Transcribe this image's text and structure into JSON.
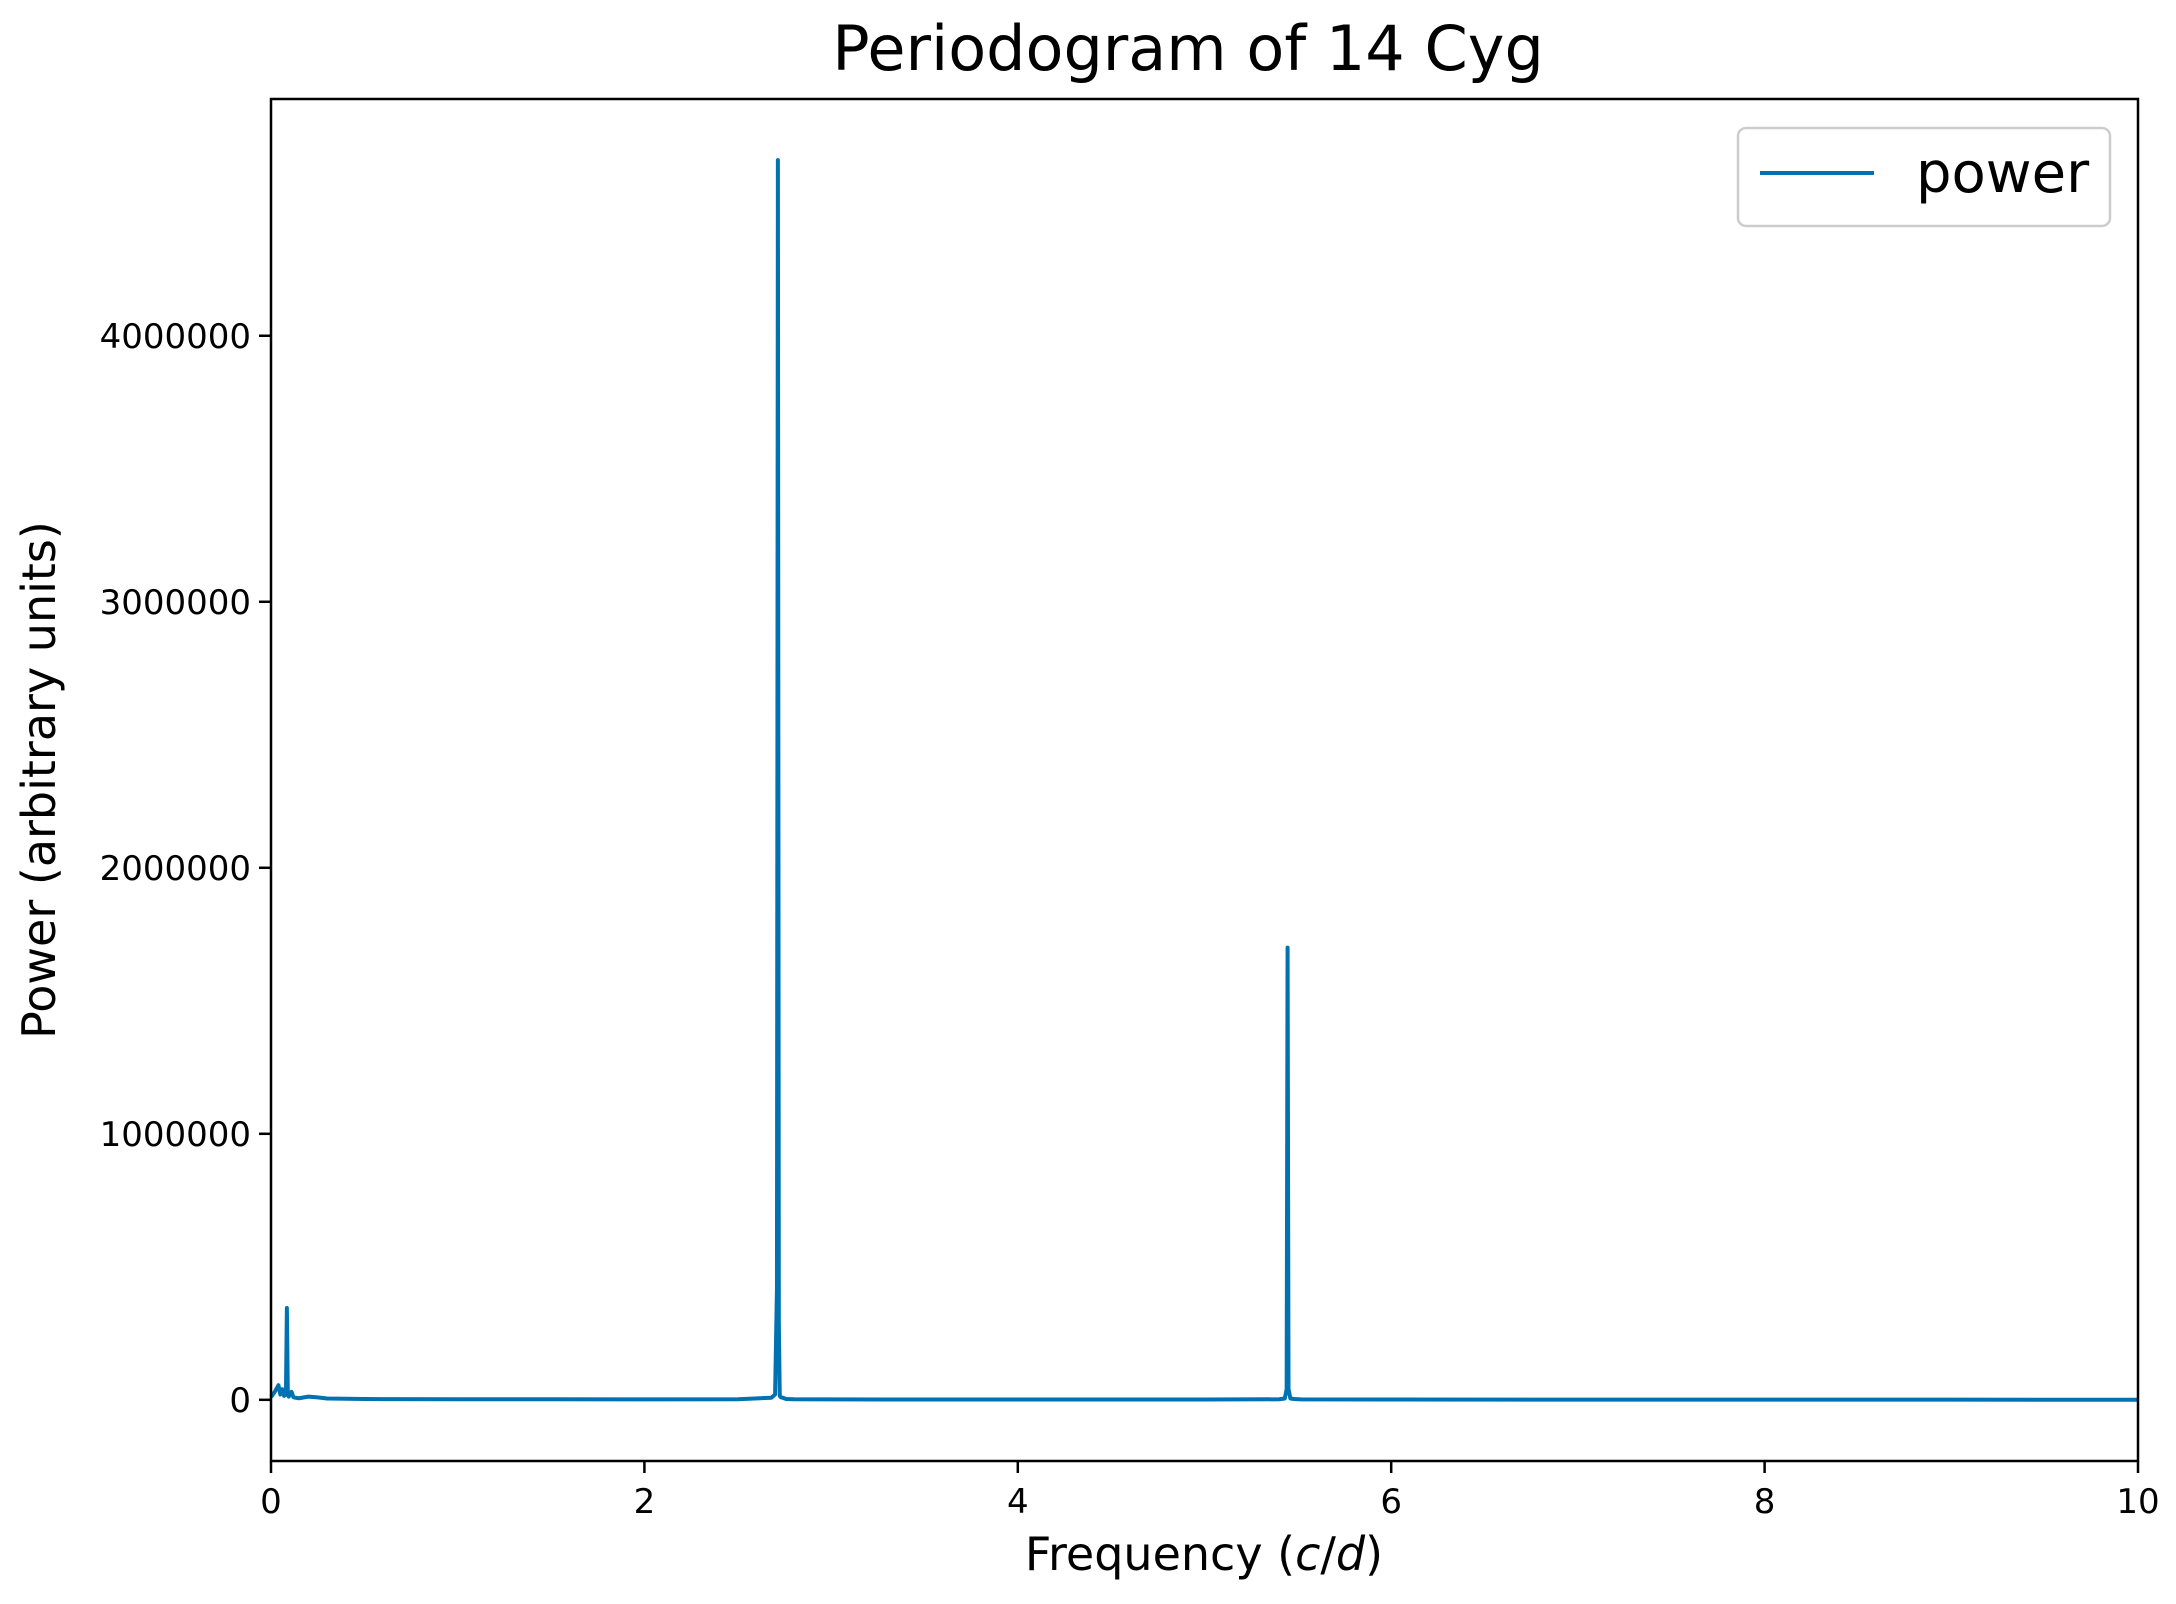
{
  "chart_data": {
    "type": "line",
    "title": "Periodogram of 14 Cyg",
    "xlabel_prefix": "Frequency (",
    "xlabel_var1": "c",
    "xlabel_sep": "/",
    "xlabel_var2": "d",
    "xlabel_suffix": ")",
    "ylabel": "Power (arbitrary units)",
    "xlim": [
      0,
      10
    ],
    "ylim": [
      -230000,
      4890000
    ],
    "xticks": [
      0,
      2,
      4,
      6,
      8,
      10
    ],
    "xtick_labels": [
      "0",
      "2",
      "4",
      "6",
      "8",
      "10"
    ],
    "yticks": [
      0,
      1000000,
      2000000,
      3000000,
      4000000
    ],
    "ytick_labels": [
      "0",
      "1000000",
      "2000000",
      "3000000",
      "4000000"
    ],
    "grid": false,
    "legend": {
      "position": "top-right",
      "entries": [
        "power"
      ]
    },
    "series": [
      {
        "name": "power",
        "color": "#0072b2",
        "x": [
          0.0,
          0.02,
          0.04,
          0.05,
          0.06,
          0.07,
          0.08,
          0.085,
          0.09,
          0.095,
          0.1,
          0.11,
          0.12,
          0.13,
          0.15,
          0.2,
          0.25,
          0.3,
          0.5,
          1.0,
          1.5,
          2.0,
          2.5,
          2.68,
          2.7,
          2.71,
          2.715,
          2.72,
          2.725,
          2.73,
          2.74,
          2.76,
          2.8,
          3.0,
          4.0,
          5.0,
          5.4,
          5.43,
          5.44,
          5.445,
          5.45,
          5.46,
          5.48,
          5.52,
          6.0,
          7.0,
          8.0,
          9.0,
          10.0
        ],
        "y": [
          10000,
          30000,
          55000,
          20000,
          40000,
          15000,
          20000,
          345000,
          25000,
          12000,
          18000,
          30000,
          10000,
          8000,
          6000,
          12000,
          9000,
          5000,
          3000,
          2000,
          2000,
          1500,
          2000,
          8000,
          20000,
          420000,
          4660000,
          290000,
          15000,
          10000,
          8000,
          3000,
          2000,
          1500,
          1000,
          1000,
          2000,
          5000,
          40000,
          1700000,
          40000,
          5000,
          3000,
          1500,
          1000,
          800,
          600,
          500,
          400
        ]
      }
    ]
  }
}
